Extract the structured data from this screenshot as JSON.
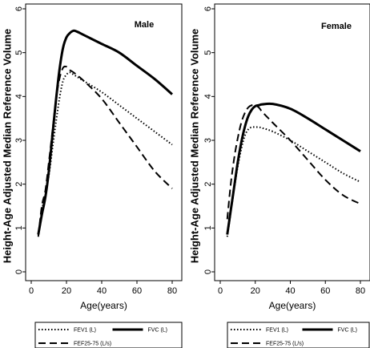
{
  "chart_data": [
    {
      "type": "line",
      "title": "Male",
      "xlabel": "Age(years)",
      "ylabel": "Height-Age Adjusted Median Reference Volume",
      "xlim": [
        0,
        80
      ],
      "ylim": [
        0,
        6
      ],
      "xticks": [
        "0",
        "20",
        "40",
        "60",
        "80"
      ],
      "yticks": [
        "0",
        "1",
        "2",
        "3",
        "4",
        "5",
        "6"
      ],
      "grid": false,
      "legend": "bottom",
      "series": [
        {
          "name": "FEV1 (L)",
          "style": "dotted",
          "x": [
            4,
            6,
            8,
            10,
            12,
            14,
            16,
            18,
            20,
            22,
            24,
            30,
            40,
            50,
            60,
            70,
            80
          ],
          "y": [
            0.85,
            1.4,
            1.75,
            2.2,
            2.8,
            3.4,
            3.95,
            4.35,
            4.5,
            4.55,
            4.5,
            4.35,
            4.1,
            3.8,
            3.5,
            3.2,
            2.9
          ]
        },
        {
          "name": "FVC (L)",
          "style": "solid",
          "x": [
            4,
            6,
            8,
            10,
            12,
            14,
            16,
            18,
            20,
            22,
            24,
            26,
            30,
            40,
            50,
            60,
            70,
            80
          ],
          "y": [
            0.85,
            1.3,
            1.7,
            2.3,
            3.1,
            3.9,
            4.6,
            5.1,
            5.35,
            5.45,
            5.5,
            5.48,
            5.4,
            5.2,
            5.0,
            4.7,
            4.4,
            4.05
          ]
        },
        {
          "name": "FEF25-75 (L/s)",
          "style": "dashed",
          "x": [
            4,
            6,
            8,
            10,
            12,
            14,
            16,
            18,
            20,
            22,
            24,
            30,
            40,
            50,
            60,
            70,
            80
          ],
          "y": [
            0.8,
            1.5,
            1.85,
            2.5,
            3.2,
            3.9,
            4.4,
            4.65,
            4.68,
            4.6,
            4.55,
            4.35,
            3.95,
            3.4,
            2.85,
            2.3,
            1.9
          ]
        }
      ]
    },
    {
      "type": "line",
      "title": "Female",
      "xlabel": "Age(years)",
      "ylabel": "Height-Age Adjusted Median Reference Volume",
      "xlim": [
        0,
        80
      ],
      "ylim": [
        0,
        6
      ],
      "xticks": [
        "0",
        "20",
        "40",
        "60",
        "80"
      ],
      "yticks": [
        "0",
        "1",
        "2",
        "3",
        "4",
        "5",
        "6"
      ],
      "grid": false,
      "legend": "bottom",
      "series": [
        {
          "name": "FEV1 (L)",
          "style": "dotted",
          "x": [
            4,
            6,
            8,
            10,
            12,
            14,
            16,
            18,
            20,
            22,
            24,
            30,
            40,
            50,
            60,
            70,
            80
          ],
          "y": [
            0.8,
            1.35,
            1.9,
            2.4,
            2.8,
            3.1,
            3.25,
            3.3,
            3.3,
            3.3,
            3.28,
            3.2,
            3.0,
            2.75,
            2.5,
            2.25,
            2.05
          ]
        },
        {
          "name": "FVC (L)",
          "style": "solid",
          "x": [
            4,
            6,
            8,
            10,
            12,
            14,
            16,
            18,
            20,
            22,
            24,
            30,
            40,
            50,
            60,
            70,
            80
          ],
          "y": [
            0.85,
            1.4,
            1.95,
            2.5,
            2.95,
            3.3,
            3.55,
            3.7,
            3.78,
            3.8,
            3.82,
            3.83,
            3.72,
            3.5,
            3.25,
            3.0,
            2.75
          ]
        },
        {
          "name": "FEF25-75 (L/s)",
          "style": "dashed",
          "x": [
            4,
            6,
            8,
            10,
            12,
            14,
            16,
            18,
            20,
            22,
            24,
            30,
            40,
            50,
            60,
            70,
            80
          ],
          "y": [
            1.2,
            2.0,
            2.6,
            3.05,
            3.4,
            3.62,
            3.75,
            3.8,
            3.8,
            3.75,
            3.65,
            3.4,
            3.0,
            2.55,
            2.1,
            1.75,
            1.55
          ]
        }
      ]
    }
  ]
}
